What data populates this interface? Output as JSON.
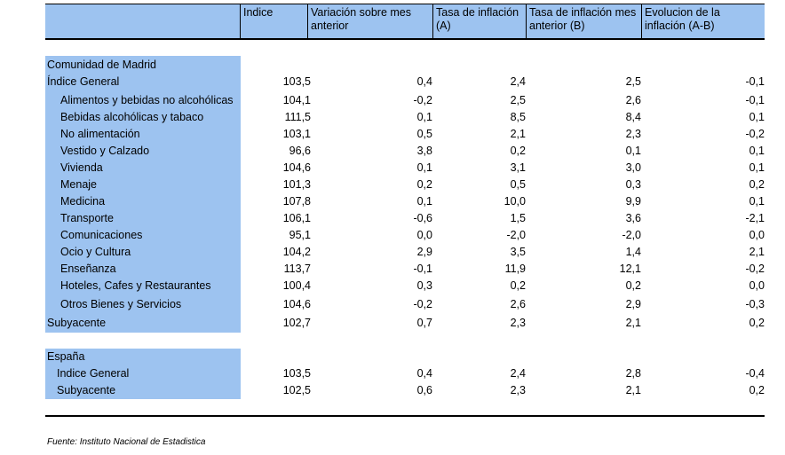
{
  "header": {
    "col_indice": "Indice",
    "col_variacion": "Variación sobre mes anterior",
    "col_tasa_a": "Tasa de inflación (A)",
    "col_tasa_b": "Tasa de inflación mes anterior (B)",
    "col_evolucion": "Evolucion de la inflación (A-B)"
  },
  "madrid": {
    "title": "Comunidad de Madrid",
    "rows": [
      {
        "label": "Índice General",
        "indice": "103,5",
        "variacion": "0,4",
        "tasa_a": "2,4",
        "tasa_b": "2,5",
        "evolucion": "-0,1"
      },
      {
        "label": "Alimentos y bebidas no alcohólicas",
        "indice": "104,1",
        "variacion": "-0,2",
        "tasa_a": "2,5",
        "tasa_b": "2,6",
        "evolucion": "-0,1"
      },
      {
        "label": "Bebidas alcohólicas y tabaco",
        "indice": "111,5",
        "variacion": "0,1",
        "tasa_a": "8,5",
        "tasa_b": "8,4",
        "evolucion": "0,1"
      },
      {
        "label": "No alimentación",
        "indice": "103,1",
        "variacion": "0,5",
        "tasa_a": "2,1",
        "tasa_b": "2,3",
        "evolucion": "-0,2"
      },
      {
        "label": "Vestido y Calzado",
        "indice": "96,6",
        "variacion": "3,8",
        "tasa_a": "0,2",
        "tasa_b": "0,1",
        "evolucion": "0,1"
      },
      {
        "label": "Vivienda",
        "indice": "104,6",
        "variacion": "0,1",
        "tasa_a": "3,1",
        "tasa_b": "3,0",
        "evolucion": "0,1"
      },
      {
        "label": "Menaje",
        "indice": "101,3",
        "variacion": "0,2",
        "tasa_a": "0,5",
        "tasa_b": "0,3",
        "evolucion": "0,2"
      },
      {
        "label": "Medicina",
        "indice": "107,8",
        "variacion": "0,1",
        "tasa_a": "10,0",
        "tasa_b": "9,9",
        "evolucion": "0,1"
      },
      {
        "label": "Transporte",
        "indice": "106,1",
        "variacion": "-0,6",
        "tasa_a": "1,5",
        "tasa_b": "3,6",
        "evolucion": "-2,1"
      },
      {
        "label": "Comunicaciones",
        "indice": "95,1",
        "variacion": "0,0",
        "tasa_a": "-2,0",
        "tasa_b": "-2,0",
        "evolucion": "0,0"
      },
      {
        "label": "Ocio y Cultura",
        "indice": "104,2",
        "variacion": "2,9",
        "tasa_a": "3,5",
        "tasa_b": "1,4",
        "evolucion": "2,1"
      },
      {
        "label": "Enseñanza",
        "indice": "113,7",
        "variacion": "-0,1",
        "tasa_a": "11,9",
        "tasa_b": "12,1",
        "evolucion": "-0,2"
      },
      {
        "label": "Hoteles, Cafes y Restaurantes",
        "indice": "100,4",
        "variacion": "0,3",
        "tasa_a": "0,2",
        "tasa_b": "0,2",
        "evolucion": "0,0"
      },
      {
        "label": "Otros Bienes y Servicios",
        "indice": "104,6",
        "variacion": "-0,2",
        "tasa_a": "2,6",
        "tasa_b": "2,9",
        "evolucion": "-0,3"
      },
      {
        "label": "Subyacente",
        "indice": "102,7",
        "variacion": "0,7",
        "tasa_a": "2,3",
        "tasa_b": "2,1",
        "evolucion": "0,2"
      }
    ]
  },
  "espana": {
    "title": "España",
    "rows": [
      {
        "label": "Indice General",
        "indice": "103,5",
        "variacion": "0,4",
        "tasa_a": "2,4",
        "tasa_b": "2,8",
        "evolucion": "-0,4"
      },
      {
        "label": "Subyacente",
        "indice": "102,5",
        "variacion": "0,6",
        "tasa_a": "2,3",
        "tasa_b": "2,1",
        "evolucion": "0,2"
      }
    ]
  },
  "footer": {
    "source": "Fuente: Instituto Nacional de Estadistica"
  },
  "colors": {
    "label_fill": "#9dc3f0",
    "header_fill": "#9dc3f0"
  }
}
